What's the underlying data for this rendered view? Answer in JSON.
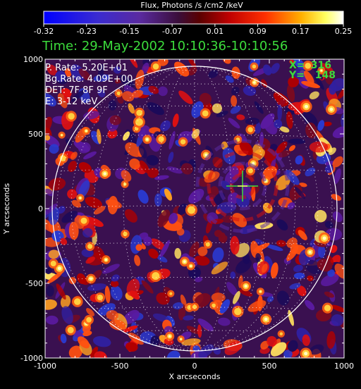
{
  "colorbar": {
    "title": "Flux, Photons /s /cm2 /keV",
    "ticks": [
      "-0.32",
      "-0.23",
      "-0.15",
      "-0.07",
      "0.01",
      "0.09",
      "0.17",
      "0.25"
    ]
  },
  "time_label": "Time: 29-May-2002 10:10:36-10:10:56",
  "info": {
    "p_rate": "P. Rate:  5.20E+01",
    "bg_rate": "Bg.Rate:  4.09E+00",
    "det": "DET: 7F 8F 9F",
    "energy": "E: 3-12 keV"
  },
  "cursor": {
    "x_label": "X=",
    "x_value": "316",
    "y_label": "Y=",
    "y_value": "148"
  },
  "axes": {
    "xlabel": "X arcseconds",
    "ylabel": "Y arcseconds",
    "xticks": [
      "-1000",
      "-500",
      "0",
      "500",
      "1000"
    ],
    "yticks": [
      "1000",
      "500",
      "0",
      "-500",
      "-1000"
    ]
  },
  "colors": {
    "background": "#000000",
    "text": "#ffffff",
    "time_text": "#3cdc3c",
    "cursor_text": "#3cdc3c",
    "limb": "#ffffff"
  }
}
